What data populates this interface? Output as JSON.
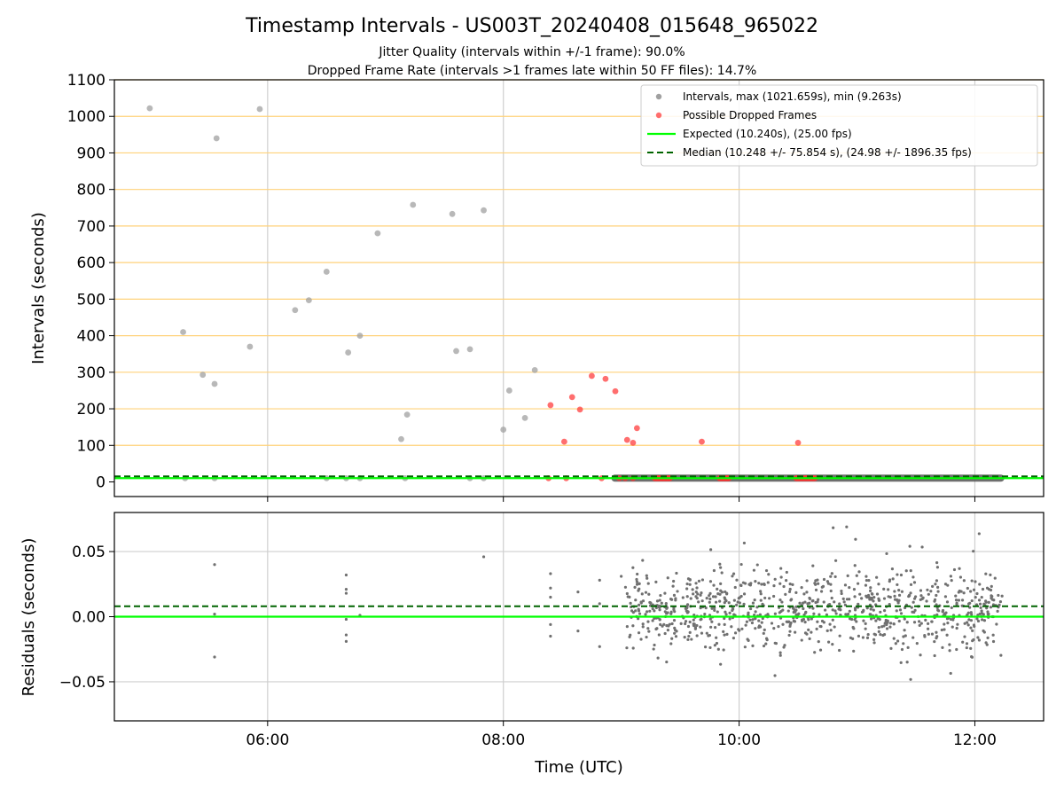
{
  "chart_data": [
    {
      "type": "scatter",
      "title": "Timestamp Intervals - US003T_20240408_015648_965022",
      "subtitle_lines": [
        "Jitter Quality (intervals within +/-1 frame): 90.0%",
        "Dropped Frame Rate (intervals >1 frames late within 50 FF files): 14.7%"
      ],
      "ylabel": "Intervals (seconds)",
      "xlim": [
        "04:42",
        "12:35"
      ],
      "ylim": [
        -40,
        1100
      ],
      "yticks": [
        0,
        100,
        200,
        300,
        400,
        500,
        600,
        700,
        800,
        900,
        1000,
        1100
      ],
      "ytick_labels": [
        "0",
        "100",
        "200",
        "300",
        "400",
        "500",
        "600",
        "700",
        "800",
        "900",
        "1000",
        "1100"
      ],
      "xticks": [
        "06:00",
        "08:00",
        "10:00",
        "12:00"
      ],
      "grid": "yellow horizontal lines at y ticks, grey vertical lines at x ticks",
      "legend_position": "upper right",
      "legend": [
        "Intervals, max (1021.659s), min (9.263s)",
        "Possible Dropped Frames",
        "Expected (10.240s), (25.00 fps)",
        "Median (10.248 +/- 75.854 s), (24.98 +/- 1896.35 fps)"
      ],
      "reference_lines": {
        "expected": 10.24,
        "median": 10.248
      },
      "dense_band": {
        "from": "08:55",
        "to": "12:15",
        "value": 10.24
      },
      "series": [
        {
          "name": "Intervals, max (1021.659s), min (9.263s)",
          "color": "#a0a0a0",
          "points": [
            [
              "05:00",
              1022
            ],
            [
              "05:17",
              410
            ],
            [
              "05:27",
              293
            ],
            [
              "05:33",
              268
            ],
            [
              "05:34",
              940
            ],
            [
              "05:51",
              370
            ],
            [
              "05:56",
              1020
            ],
            [
              "06:14",
              470
            ],
            [
              "06:21",
              497
            ],
            [
              "06:30",
              575
            ],
            [
              "06:41",
              354
            ],
            [
              "06:47",
              400
            ],
            [
              "06:56",
              680
            ],
            [
              "07:08",
              117
            ],
            [
              "07:11",
              184
            ],
            [
              "07:14",
              758
            ],
            [
              "07:34",
              733
            ],
            [
              "07:36",
              358
            ],
            [
              "07:43",
              363
            ],
            [
              "07:50",
              743
            ],
            [
              "08:00",
              143
            ],
            [
              "08:03",
              250
            ],
            [
              "08:11",
              175
            ],
            [
              "08:16",
              306
            ],
            [
              "05:18",
              10
            ],
            [
              "05:33",
              10
            ],
            [
              "06:30",
              10
            ],
            [
              "06:40",
              10
            ],
            [
              "06:47",
              10
            ],
            [
              "07:10",
              10
            ],
            [
              "07:43",
              10
            ],
            [
              "07:50",
              10
            ]
          ]
        },
        {
          "name": "Possible Dropped Frames",
          "color": "#ff3030",
          "points": [
            [
              "08:24",
              210
            ],
            [
              "08:31",
              110
            ],
            [
              "08:35",
              232
            ],
            [
              "08:39",
              198
            ],
            [
              "08:45",
              290
            ],
            [
              "08:52",
              282
            ],
            [
              "08:57",
              248
            ],
            [
              "09:03",
              115
            ],
            [
              "09:06",
              107
            ],
            [
              "09:08",
              147
            ],
            [
              "09:41",
              110
            ],
            [
              "10:30",
              107
            ],
            [
              "08:23",
              10
            ],
            [
              "08:32",
              10
            ],
            [
              "08:50",
              10
            ],
            [
              "08:59",
              10
            ],
            [
              "09:02",
              10
            ],
            [
              "09:06",
              10
            ]
          ],
          "dense_ranges": [
            [
              "09:17",
              "09:25",
              10
            ],
            [
              "09:50",
              "09:55",
              10
            ],
            [
              "10:29",
              "10:39",
              10
            ]
          ]
        }
      ]
    },
    {
      "type": "scatter",
      "xlabel": "Time (UTC)",
      "ylabel": "Residuals (seconds)",
      "xlim": [
        "04:42",
        "12:35"
      ],
      "ylim": [
        -0.08,
        0.08
      ],
      "yticks": [
        -0.05,
        0.0,
        0.05
      ],
      "ytick_labels": [
        "−0.05",
        "0.00",
        "0.05"
      ],
      "xticks": [
        "06:00",
        "08:00",
        "10:00",
        "12:00"
      ],
      "reference_lines": {
        "expected": 0.0,
        "median": 0.008
      },
      "series": [
        {
          "name": "Residuals",
          "color": "#707070",
          "points": [
            [
              "05:33",
              0.04
            ],
            [
              "05:33",
              0.002
            ],
            [
              "05:33",
              -0.031
            ],
            [
              "06:40",
              0.032
            ],
            [
              "06:40",
              0.021
            ],
            [
              "06:40",
              0.018
            ],
            [
              "06:40",
              -0.002
            ],
            [
              "06:40",
              -0.014
            ],
            [
              "06:40",
              -0.019
            ],
            [
              "06:47",
              0.001
            ],
            [
              "07:50",
              0.046
            ],
            [
              "08:24",
              0.033
            ],
            [
              "08:24",
              0.022
            ],
            [
              "08:24",
              0.015
            ],
            [
              "08:24",
              -0.006
            ],
            [
              "08:24",
              -0.015
            ],
            [
              "08:38",
              0.019
            ],
            [
              "08:38",
              -0.011
            ],
            [
              "08:49",
              0.028
            ],
            [
              "08:49",
              0.01
            ],
            [
              "08:49",
              -0.023
            ],
            [
              "09:00",
              0.031
            ]
          ],
          "dense_region": {
            "from": "09:02",
            "to": "12:14",
            "min": -0.051,
            "max": 0.07
          }
        }
      ]
    }
  ]
}
